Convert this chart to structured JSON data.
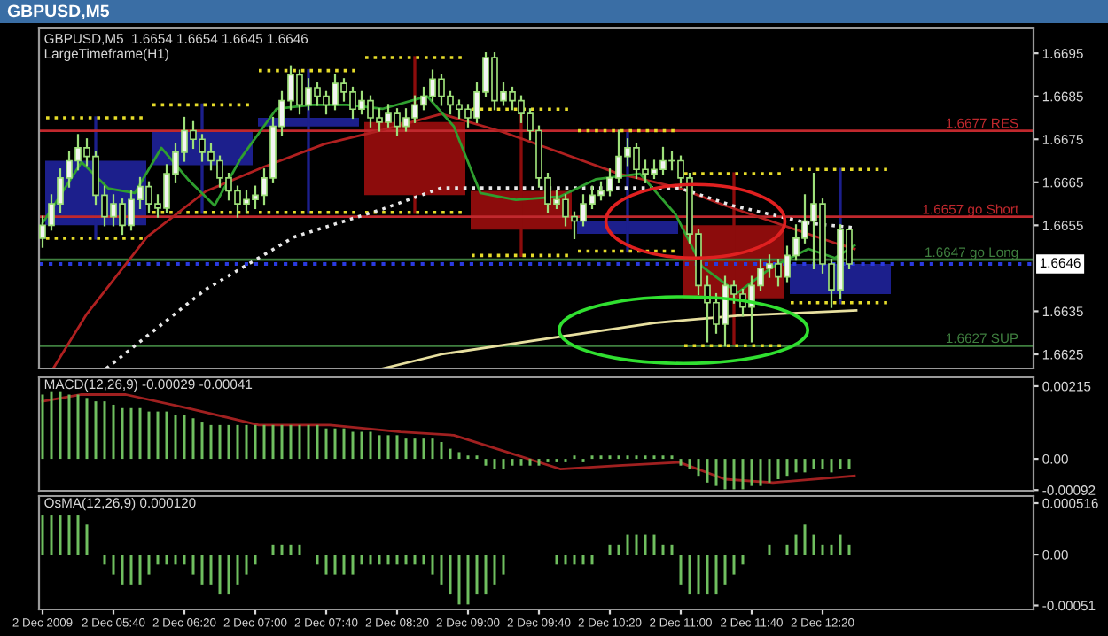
{
  "chart_data": [
    {
      "type": "candlestick",
      "title": "GBPUSD,M5",
      "subtitle": "GBPUSD,M5  1.6654 1.6654 1.6645 1.6646",
      "annotations": [
        "LargeTimeframe(H1)"
      ],
      "xlim": [
        "2009-12-02T04:58",
        "2009-12-02T14:19"
      ],
      "ylim": [
        1.66217,
        1.67008
      ],
      "tick_labels": "y",
      "yticks": [
        1.6625,
        1.6635,
        1.6655,
        1.6665,
        1.6675,
        1.6685,
        1.6695
      ],
      "ref_lines": [
        {
          "axis": "y",
          "value": 1.6677,
          "label": "1.6677 RES",
          "color": "#c0282d"
        },
        {
          "axis": "y",
          "value": 1.6657,
          "label": "1.6657 go Short",
          "color": "#c0282d"
        },
        {
          "axis": "y",
          "value": 1.6647,
          "label": "1.6647 go Long",
          "color": "#3f7f3f"
        },
        {
          "axis": "y",
          "value": 1.6627,
          "label": "1.6627 SUP",
          "color": "#3f7f3f"
        },
        {
          "axis": "y",
          "value": 1.6646,
          "label": "1.6646",
          "color": "#2a3adf",
          "line_style": "dotted"
        }
      ],
      "x": [
        "2009-12-02T05:00",
        "2009-12-02T05:05",
        "2009-12-02T05:10",
        "2009-12-02T05:15",
        "2009-12-02T05:20",
        "2009-12-02T05:25",
        "2009-12-02T05:30",
        "2009-12-02T05:35",
        "2009-12-02T05:40",
        "2009-12-02T05:45",
        "2009-12-02T05:50",
        "2009-12-02T05:55",
        "2009-12-02T06:00",
        "2009-12-02T06:05",
        "2009-12-02T06:10",
        "2009-12-02T06:15",
        "2009-12-02T06:20",
        "2009-12-02T06:25",
        "2009-12-02T06:30",
        "2009-12-02T06:35",
        "2009-12-02T06:40",
        "2009-12-02T06:45",
        "2009-12-02T06:50",
        "2009-12-02T06:55",
        "2009-12-02T07:00",
        "2009-12-02T07:05",
        "2009-12-02T07:10",
        "2009-12-02T07:15",
        "2009-12-02T07:20",
        "2009-12-02T07:25",
        "2009-12-02T07:30",
        "2009-12-02T07:35",
        "2009-12-02T07:40",
        "2009-12-02T07:45",
        "2009-12-02T07:50",
        "2009-12-02T07:55",
        "2009-12-02T08:00",
        "2009-12-02T08:05",
        "2009-12-02T08:10",
        "2009-12-02T08:15",
        "2009-12-02T08:20",
        "2009-12-02T08:25",
        "2009-12-02T08:30",
        "2009-12-02T08:35",
        "2009-12-02T08:40",
        "2009-12-02T08:45",
        "2009-12-02T08:50",
        "2009-12-02T08:55",
        "2009-12-02T09:00",
        "2009-12-02T09:05",
        "2009-12-02T09:10",
        "2009-12-02T09:15",
        "2009-12-02T09:20",
        "2009-12-02T09:25",
        "2009-12-02T09:30",
        "2009-12-02T09:35",
        "2009-12-02T09:40",
        "2009-12-02T09:45",
        "2009-12-02T09:50",
        "2009-12-02T09:55",
        "2009-12-02T10:00",
        "2009-12-02T10:05",
        "2009-12-02T10:10",
        "2009-12-02T10:15",
        "2009-12-02T10:20",
        "2009-12-02T10:25",
        "2009-12-02T10:30",
        "2009-12-02T10:35",
        "2009-12-02T10:40",
        "2009-12-02T10:45",
        "2009-12-02T10:50",
        "2009-12-02T10:55",
        "2009-12-02T11:00",
        "2009-12-02T11:05",
        "2009-12-02T11:10",
        "2009-12-02T11:15",
        "2009-12-02T11:20",
        "2009-12-02T11:25",
        "2009-12-02T11:30",
        "2009-12-02T11:35",
        "2009-12-02T11:40",
        "2009-12-02T11:45",
        "2009-12-02T11:50",
        "2009-12-02T11:55",
        "2009-12-02T12:00",
        "2009-12-02T12:05",
        "2009-12-02T12:10",
        "2009-12-02T12:15",
        "2009-12-02T12:20",
        "2009-12-02T12:25",
        "2009-12-02T12:30",
        "2009-12-02T12:35"
      ],
      "series": [
        {
          "type": "line",
          "color": "#e6dc2a",
          "line_style": "dotted",
          "x": [
            "2009-12-02T05:02",
            "2009-12-02T05:58"
          ],
          "values": [
            1.668,
            1.668
          ]
        },
        {
          "type": "line",
          "color": "#e6dc2a",
          "line_style": "dotted",
          "x": [
            "2009-12-02T05:02",
            "2009-12-02T05:58"
          ],
          "values": [
            1.6652,
            1.6652
          ]
        },
        {
          "type": "line",
          "color": "#e6dc2a",
          "line_style": "dotted",
          "x": [
            "2009-12-02T06:02",
            "2009-12-02T06:58"
          ],
          "values": [
            1.6683,
            1.6683
          ]
        },
        {
          "type": "line",
          "color": "#e6dc2a",
          "line_style": "dotted",
          "x": [
            "2009-12-02T06:02",
            "2009-12-02T06:58"
          ],
          "values": [
            1.6658,
            1.6658
          ]
        },
        {
          "type": "line",
          "color": "#e6dc2a",
          "line_style": "dotted",
          "x": [
            "2009-12-02T07:02",
            "2009-12-02T07:58"
          ],
          "values": [
            1.6691,
            1.6691
          ]
        },
        {
          "type": "line",
          "color": "#e6dc2a",
          "line_style": "dotted",
          "x": [
            "2009-12-02T07:02",
            "2009-12-02T07:58"
          ],
          "values": [
            1.6658,
            1.6658
          ]
        },
        {
          "type": "line",
          "color": "#e6dc2a",
          "line_style": "dotted",
          "x": [
            "2009-12-02T08:02",
            "2009-12-02T08:58"
          ],
          "values": [
            1.6694,
            1.6694
          ]
        },
        {
          "type": "line",
          "color": "#e6dc2a",
          "line_style": "dotted",
          "x": [
            "2009-12-02T08:02",
            "2009-12-02T08:58"
          ],
          "values": [
            1.6658,
            1.6658
          ]
        },
        {
          "type": "line",
          "color": "#e6dc2a",
          "line_style": "dotted",
          "x": [
            "2009-12-02T09:02",
            "2009-12-02T09:58"
          ],
          "values": [
            1.6682,
            1.6682
          ]
        },
        {
          "type": "line",
          "color": "#e6dc2a",
          "line_style": "dotted",
          "x": [
            "2009-12-02T09:02",
            "2009-12-02T09:58"
          ],
          "values": [
            1.6648,
            1.6648
          ]
        },
        {
          "type": "line",
          "color": "#e6dc2a",
          "line_style": "dotted",
          "x": [
            "2009-12-02T10:02",
            "2009-12-02T10:58"
          ],
          "values": [
            1.6677,
            1.6677
          ]
        },
        {
          "type": "line",
          "color": "#e6dc2a",
          "line_style": "dotted",
          "x": [
            "2009-12-02T10:02",
            "2009-12-02T10:58"
          ],
          "values": [
            1.6649,
            1.6649
          ]
        },
        {
          "type": "line",
          "color": "#e6dc2a",
          "line_style": "dotted",
          "x": [
            "2009-12-02T11:02",
            "2009-12-02T11:58"
          ],
          "values": [
            1.6667,
            1.6667
          ]
        },
        {
          "type": "line",
          "color": "#e6dc2a",
          "line_style": "dotted",
          "x": [
            "2009-12-02T11:02",
            "2009-12-02T11:58"
          ],
          "values": [
            1.6627,
            1.6627
          ]
        },
        {
          "type": "line",
          "color": "#e6dc2a",
          "line_style": "dotted",
          "x": [
            "2009-12-02T12:02",
            "2009-12-02T12:58"
          ],
          "values": [
            1.6668,
            1.6668
          ]
        },
        {
          "type": "line",
          "color": "#e6dc2a",
          "line_style": "dotted",
          "x": [
            "2009-12-02T12:02",
            "2009-12-02T12:58"
          ],
          "values": [
            1.6637,
            1.6637
          ]
        },
        {
          "type": "candlestick",
          "x": [
            "2009-12-02T05:30",
            "2009-12-02T06:30",
            "2009-12-02T07:30",
            "2009-12-02T08:30",
            "2009-12-02T09:30",
            "2009-12-02T10:30",
            "2009-12-02T11:30",
            "2009-12-02T12:30"
          ],
          "colors": [
            "#1c1f8c",
            "#1c1f8c",
            "#1c1f8c",
            "#8c0c0c",
            "#8c0c0c",
            "#1c1f8c",
            "#8c0c0c",
            "#1c1f8c"
          ],
          "ohlc": [
            [
              1.6655,
              1.668,
              1.6652,
              1.667
            ],
            [
              1.6669,
              1.6683,
              1.6658,
              1.6677
            ],
            [
              1.6678,
              1.6691,
              1.6658,
              1.668
            ],
            [
              1.6679,
              1.6694,
              1.6658,
              1.6662
            ],
            [
              1.6663,
              1.6682,
              1.6648,
              1.6654
            ],
            [
              1.6653,
              1.6677,
              1.6649,
              1.6656
            ],
            [
              1.6655,
              1.6667,
              1.6627,
              1.6638
            ],
            [
              1.6639,
              1.6668,
              1.6637,
              1.6646
            ]
          ]
        },
        {
          "type": "line",
          "color": "#b02020",
          "x": [
            "2009-12-02T05:06",
            "2009-12-02T05:25",
            "2009-12-02T05:59",
            "2009-12-02T06:32",
            "2009-12-02T07:05",
            "2009-12-02T07:39",
            "2009-12-02T08:12",
            "2009-12-02T08:45",
            "2009-12-02T09:19",
            "2009-12-02T09:52",
            "2009-12-02T10:25",
            "2009-12-02T10:59",
            "2009-12-02T11:25",
            "2009-12-02T12:29",
            "2009-12-02T12:38"
          ],
          "values": [
            1.66217,
            1.66344,
            1.66523,
            1.66629,
            1.66686,
            1.66739,
            1.66772,
            1.66809,
            1.66768,
            1.66719,
            1.6667,
            1.66637,
            1.66596,
            1.66506,
            1.66495
          ]
        },
        {
          "type": "line",
          "color": "#e8e8e8",
          "line_style": "dotted",
          "x": [
            "2009-12-02T05:36",
            "2009-12-02T06:32",
            "2009-12-02T07:22",
            "2009-12-02T08:12",
            "2009-12-02T08:45",
            "2009-12-02T10:12",
            "2009-12-02T10:59",
            "2009-12-02T11:29",
            "2009-12-02T12:12",
            "2009-12-02T12:39"
          ],
          "values": [
            1.66217,
            1.66401,
            1.66523,
            1.66588,
            1.66637,
            1.66637,
            1.66637,
            1.66596,
            1.66555,
            1.66544
          ]
        },
        {
          "type": "line",
          "color": "#e8e0a0",
          "x": [
            "2009-12-02T08:12",
            "2009-12-02T08:45",
            "2009-12-02T09:52",
            "2009-12-02T10:45",
            "2009-12-02T11:32",
            "2009-12-02T12:39"
          ],
          "values": [
            1.66217,
            1.6625,
            1.66291,
            1.66323,
            1.6634,
            1.66352
          ]
        },
        {
          "type": "line",
          "color": "#2f9f2f",
          "x": [
            "2009-12-02T05:00",
            "2009-12-02T05:22",
            "2009-12-02T05:37",
            "2009-12-02T05:52",
            "2009-12-02T06:07",
            "2009-12-02T06:22",
            "2009-12-02T06:37",
            "2009-12-02T06:52",
            "2009-12-02T07:12",
            "2009-12-02T07:32",
            "2009-12-02T07:52",
            "2009-12-02T08:12",
            "2009-12-02T08:37",
            "2009-12-02T08:52",
            "2009-12-02T09:07",
            "2009-12-02T09:27",
            "2009-12-02T09:52",
            "2009-12-02T10:12",
            "2009-12-02T10:37",
            "2009-12-02T10:57",
            "2009-12-02T11:12",
            "2009-12-02T11:32",
            "2009-12-02T11:52",
            "2009-12-02T12:12",
            "2009-12-02T12:27",
            "2009-12-02T12:38"
          ],
          "values": [
            1.66555,
            1.66697,
            1.66636,
            1.66625,
            1.6673,
            1.66657,
            1.66596,
            1.66707,
            1.66821,
            1.6683,
            1.6683,
            1.66821,
            1.6685,
            1.6678,
            1.66625,
            1.66609,
            1.66617,
            1.66657,
            1.6667,
            1.66576,
            1.66454,
            1.66393,
            1.66454,
            1.66495,
            1.66474,
            1.66503
          ]
        },
        {
          "color": "#9ee07a",
          "ohlc": [
            [
              1.6652,
              1.6657,
              1.665,
              1.6655
            ],
            [
              1.6655,
              1.6662,
              1.6654,
              1.666
            ],
            [
              1.666,
              1.6668,
              1.6658,
              1.6666
            ],
            [
              1.6666,
              1.6672,
              1.6664,
              1.667
            ],
            [
              1.667,
              1.6676,
              1.6668,
              1.6673
            ],
            [
              1.6673,
              1.6675,
              1.6669,
              1.6671
            ],
            [
              1.6671,
              1.6672,
              1.666,
              1.6662
            ],
            [
              1.6662,
              1.6664,
              1.6655,
              1.6657
            ],
            [
              1.6657,
              1.6662,
              1.6655,
              1.666
            ],
            [
              1.666,
              1.6661,
              1.6653,
              1.6655
            ],
            [
              1.6655,
              1.6663,
              1.6654,
              1.6661
            ],
            [
              1.6661,
              1.6666,
              1.6659,
              1.6664
            ],
            [
              1.6664,
              1.6665,
              1.6658,
              1.666
            ],
            [
              1.666,
              1.6662,
              1.6657,
              1.6659
            ],
            [
              1.6659,
              1.6669,
              1.6658,
              1.6667
            ],
            [
              1.6667,
              1.6674,
              1.6665,
              1.6672
            ],
            [
              1.6672,
              1.668,
              1.667,
              1.6677
            ],
            [
              1.6677,
              1.6679,
              1.6673,
              1.6675
            ],
            [
              1.6675,
              1.6676,
              1.667,
              1.6672
            ],
            [
              1.6672,
              1.6674,
              1.6668,
              1.667
            ],
            [
              1.667,
              1.6671,
              1.6664,
              1.6666
            ],
            [
              1.6666,
              1.6667,
              1.6661,
              1.6663
            ],
            [
              1.6663,
              1.6664,
              1.6657,
              1.666
            ],
            [
              1.666,
              1.6663,
              1.6658,
              1.6661
            ],
            [
              1.6661,
              1.6664,
              1.6659,
              1.6662
            ],
            [
              1.6662,
              1.6668,
              1.666,
              1.6666
            ],
            [
              1.6666,
              1.668,
              1.6665,
              1.6678
            ],
            [
              1.6678,
              1.6686,
              1.6676,
              1.6684
            ],
            [
              1.6684,
              1.6692,
              1.6682,
              1.669
            ],
            [
              1.669,
              1.6691,
              1.6681,
              1.6683
            ],
            [
              1.6683,
              1.6689,
              1.6682,
              1.6687
            ],
            [
              1.6687,
              1.6688,
              1.6683,
              1.6685
            ],
            [
              1.6685,
              1.6686,
              1.6681,
              1.6683
            ],
            [
              1.6683,
              1.669,
              1.6682,
              1.6688
            ],
            [
              1.6688,
              1.6689,
              1.6684,
              1.6686
            ],
            [
              1.6686,
              1.6687,
              1.668,
              1.6682
            ],
            [
              1.6682,
              1.6686,
              1.6681,
              1.6684
            ],
            [
              1.6684,
              1.6685,
              1.6678,
              1.668
            ],
            [
              1.668,
              1.6682,
              1.6677,
              1.6679
            ],
            [
              1.6679,
              1.6683,
              1.6678,
              1.6681
            ],
            [
              1.6681,
              1.6682,
              1.6676,
              1.6678
            ],
            [
              1.6678,
              1.6682,
              1.6677,
              1.668
            ],
            [
              1.668,
              1.6685,
              1.6679,
              1.6683
            ],
            [
              1.6683,
              1.6687,
              1.6682,
              1.6685
            ],
            [
              1.6685,
              1.6691,
              1.6684,
              1.6689
            ],
            [
              1.6689,
              1.669,
              1.6683,
              1.6685
            ],
            [
              1.6685,
              1.6686,
              1.6681,
              1.6683
            ],
            [
              1.6683,
              1.6684,
              1.668,
              1.6682
            ],
            [
              1.6682,
              1.6683,
              1.6678,
              1.668
            ],
            [
              1.668,
              1.6688,
              1.6679,
              1.6686
            ],
            [
              1.6686,
              1.6695,
              1.6685,
              1.6694
            ],
            [
              1.6694,
              1.6695,
              1.6682,
              1.6684
            ],
            [
              1.6684,
              1.6688,
              1.6683,
              1.6686
            ],
            [
              1.6686,
              1.6687,
              1.6682,
              1.6684
            ],
            [
              1.6684,
              1.6685,
              1.6679,
              1.6681
            ],
            [
              1.6681,
              1.6682,
              1.6675,
              1.6677
            ],
            [
              1.6677,
              1.6678,
              1.6664,
              1.6666
            ],
            [
              1.6666,
              1.6667,
              1.6658,
              1.666
            ],
            [
              1.666,
              1.6663,
              1.6659,
              1.6661
            ],
            [
              1.6661,
              1.6662,
              1.6655,
              1.6657
            ],
            [
              1.6657,
              1.6658,
              1.6652,
              1.6656
            ],
            [
              1.6656,
              1.6662,
              1.6655,
              1.666
            ],
            [
              1.666,
              1.6664,
              1.6659,
              1.6662
            ],
            [
              1.6662,
              1.6665,
              1.6661,
              1.6663
            ],
            [
              1.6663,
              1.6668,
              1.6662,
              1.6666
            ],
            [
              1.6666,
              1.6677,
              1.6665,
              1.6671
            ],
            [
              1.6671,
              1.6675,
              1.6669,
              1.6673
            ],
            [
              1.6673,
              1.6674,
              1.6666,
              1.6668
            ],
            [
              1.6668,
              1.667,
              1.6665,
              1.6667
            ],
            [
              1.6667,
              1.667,
              1.6666,
              1.6668
            ],
            [
              1.6668,
              1.6673,
              1.6667,
              1.667
            ],
            [
              1.667,
              1.6672,
              1.6668,
              1.667
            ],
            [
              1.667,
              1.6671,
              1.6664,
              1.6666
            ],
            [
              1.6666,
              1.6667,
              1.6651,
              1.6653
            ],
            [
              1.6653,
              1.6654,
              1.6639,
              1.6641
            ],
            [
              1.6641,
              1.6643,
              1.6628,
              1.6637
            ],
            [
              1.6637,
              1.6639,
              1.663,
              1.6632
            ],
            [
              1.6632,
              1.6643,
              1.6627,
              1.6641
            ],
            [
              1.6641,
              1.6642,
              1.6637,
              1.6639
            ],
            [
              1.6639,
              1.664,
              1.6634,
              1.6636
            ],
            [
              1.6636,
              1.6643,
              1.6628,
              1.6641
            ],
            [
              1.6641,
              1.6647,
              1.664,
              1.6645
            ],
            [
              1.6645,
              1.6648,
              1.6643,
              1.6646
            ],
            [
              1.6646,
              1.6647,
              1.6641,
              1.6643
            ],
            [
              1.6643,
              1.665,
              1.6642,
              1.6648
            ],
            [
              1.6648,
              1.6655,
              1.6647,
              1.6652
            ],
            [
              1.6652,
              1.6662,
              1.6651,
              1.6656
            ],
            [
              1.6656,
              1.6667,
              1.6645,
              1.666
            ],
            [
              1.666,
              1.6661,
              1.6644,
              1.6646
            ],
            [
              1.6646,
              1.6647,
              1.6636,
              1.664
            ],
            [
              1.664,
              1.6655,
              1.6638,
              1.6654
            ],
            [
              1.6654,
              1.6654,
              1.6645,
              1.6646
            ]
          ]
        }
      ]
    },
    {
      "type": "bar",
      "subtitle": "MACD(12,26,9) -0.00029 -0.00041",
      "xlim": [
        "2009-12-02T04:58",
        "2009-12-02T14:19"
      ],
      "ylim": [
        -0.00094,
        0.00241
      ],
      "tick_labels": "y",
      "yticks": [
        -0.00092,
        {
          "value": 0,
          "label": "0.00"
        },
        0.00215
      ],
      "x": [
        "2009-12-02T05:00",
        "2009-12-02T05:05",
        "2009-12-02T05:10",
        "2009-12-02T05:15",
        "2009-12-02T05:20",
        "2009-12-02T05:25",
        "2009-12-02T05:30",
        "2009-12-02T05:35",
        "2009-12-02T05:40",
        "2009-12-02T05:45",
        "2009-12-02T05:50",
        "2009-12-02T05:55",
        "2009-12-02T06:00",
        "2009-12-02T06:05",
        "2009-12-02T06:10",
        "2009-12-02T06:15",
        "2009-12-02T06:20",
        "2009-12-02T06:25",
        "2009-12-02T06:30",
        "2009-12-02T06:35",
        "2009-12-02T06:40",
        "2009-12-02T06:45",
        "2009-12-02T06:50",
        "2009-12-02T06:55",
        "2009-12-02T07:00",
        "2009-12-02T07:05",
        "2009-12-02T07:10",
        "2009-12-02T07:15",
        "2009-12-02T07:20",
        "2009-12-02T07:25",
        "2009-12-02T07:30",
        "2009-12-02T07:35",
        "2009-12-02T07:40",
        "2009-12-02T07:45",
        "2009-12-02T07:50",
        "2009-12-02T07:55",
        "2009-12-02T08:00",
        "2009-12-02T08:05",
        "2009-12-02T08:10",
        "2009-12-02T08:15",
        "2009-12-02T08:20",
        "2009-12-02T08:25",
        "2009-12-02T08:30",
        "2009-12-02T08:35",
        "2009-12-02T08:40",
        "2009-12-02T08:45",
        "2009-12-02T08:50",
        "2009-12-02T08:55",
        "2009-12-02T09:00",
        "2009-12-02T09:05",
        "2009-12-02T09:10",
        "2009-12-02T09:15",
        "2009-12-02T09:20",
        "2009-12-02T09:25",
        "2009-12-02T09:30",
        "2009-12-02T09:35",
        "2009-12-02T09:40",
        "2009-12-02T09:45",
        "2009-12-02T09:50",
        "2009-12-02T09:55",
        "2009-12-02T10:00",
        "2009-12-02T10:05",
        "2009-12-02T10:10",
        "2009-12-02T10:15",
        "2009-12-02T10:20",
        "2009-12-02T10:25",
        "2009-12-02T10:30",
        "2009-12-02T10:35",
        "2009-12-02T10:40",
        "2009-12-02T10:45",
        "2009-12-02T10:50",
        "2009-12-02T10:55",
        "2009-12-02T11:00",
        "2009-12-02T11:05",
        "2009-12-02T11:10",
        "2009-12-02T11:15",
        "2009-12-02T11:20",
        "2009-12-02T11:25",
        "2009-12-02T11:30",
        "2009-12-02T11:35",
        "2009-12-02T11:40",
        "2009-12-02T11:45",
        "2009-12-02T11:50",
        "2009-12-02T11:55",
        "2009-12-02T12:00",
        "2009-12-02T12:05",
        "2009-12-02T12:10",
        "2009-12-02T12:15",
        "2009-12-02T12:20",
        "2009-12-02T12:25",
        "2009-12-02T12:30",
        "2009-12-02T12:35"
      ],
      "series": [
        {
          "color": "#6fbf5f",
          "values": [
            0.0019,
            0.002,
            0.002,
            0.0019,
            0.0019,
            0.0018,
            0.0017,
            0.0017,
            0.0016,
            0.0015,
            0.0015,
            0.0015,
            0.0014,
            0.0014,
            0.0014,
            0.0013,
            0.0013,
            0.0012,
            0.0011,
            0.001,
            0.001,
            0.001,
            0.001,
            0.001,
            0.001,
            0.001,
            0.001,
            0.001,
            0.001,
            0.001,
            0.001,
            0.001,
            0.0009,
            0.0009,
            0.0009,
            0.0008,
            0.0008,
            0.0008,
            0.0007,
            0.0007,
            0.0007,
            0.0006,
            0.0006,
            0.0006,
            0.0006,
            0.0005,
            0.0003,
            0.0002,
            0.0001,
            0.0001,
            -0.0002,
            -0.0003,
            -0.0003,
            -0.0002,
            -0.0002,
            -0.0002,
            -0.0002,
            -0.0001,
            -0.0001,
            -0.0001,
            0.0001,
            -0.0001,
            0.0001,
            0.0001,
            0.0001,
            0.0001,
            0.0001,
            0.0001,
            0.0001,
            0.0001,
            0.0001,
            0.0001,
            -0.0002,
            -0.0003,
            -0.0005,
            -0.0007,
            -0.0008,
            -0.0009,
            -0.0009,
            -0.0009,
            -0.0008,
            -0.0008,
            -0.0007,
            -0.0006,
            -0.0005,
            -0.0004,
            -0.0004,
            -0.0003,
            -0.0003,
            -0.0004,
            -0.0003,
            -0.0003
          ]
        },
        {
          "type": "line",
          "color": "#a02020",
          "x": [
            "2009-12-02T05:00",
            "2009-12-02T05:22",
            "2009-12-02T05:47",
            "2009-12-02T06:22",
            "2009-12-02T07:02",
            "2009-12-02T07:42",
            "2009-12-02T08:22",
            "2009-12-02T08:52",
            "2009-12-02T09:22",
            "2009-12-02T09:52",
            "2009-12-02T10:25",
            "2009-12-02T10:59",
            "2009-12-02T11:25",
            "2009-12-02T11:52",
            "2009-12-02T12:38"
          ],
          "values": [
            0.0017,
            0.0019,
            0.0019,
            0.0015,
            0.001,
            0.001,
            0.0008,
            0.0007,
            0.0002,
            -0.0003,
            -0.0002,
            -0.0001,
            -0.0006,
            -0.0007,
            -0.0005
          ]
        }
      ]
    },
    {
      "type": "bar",
      "subtitle": "OsMA(12,26,9) 0.000120",
      "xlim": [
        "2009-12-02T04:58",
        "2009-12-02T14:19"
      ],
      "ylim": [
        -0.00055,
        0.000587
      ],
      "xticks": [
        {
          "value": "2009-12-02T05:00",
          "label": "2 Dec 2009"
        },
        {
          "value": "2009-12-02T05:40",
          "label": "2 Dec 05:40"
        },
        {
          "value": "2009-12-02T06:20",
          "label": "2 Dec 06:20"
        },
        {
          "value": "2009-12-02T07:00",
          "label": "2 Dec 07:00"
        },
        {
          "value": "2009-12-02T07:40",
          "label": "2 Dec 07:40"
        },
        {
          "value": "2009-12-02T08:20",
          "label": "2 Dec 08:20"
        },
        {
          "value": "2009-12-02T09:00",
          "label": "2 Dec 09:00"
        },
        {
          "value": "2009-12-02T09:40",
          "label": "2 Dec 09:40"
        },
        {
          "value": "2009-12-02T10:20",
          "label": "2 Dec 10:20"
        },
        {
          "value": "2009-12-02T11:00",
          "label": "2 Dec 11:00"
        },
        {
          "value": "2009-12-02T11:40",
          "label": "2 Dec 11:40"
        },
        {
          "value": "2009-12-02T12:20",
          "label": "2 Dec 12:20"
        }
      ],
      "yticks": [
        -0.00051,
        {
          "value": 0,
          "label": "0.00"
        },
        0.000516
      ],
      "x": [
        "2009-12-02T05:00",
        "2009-12-02T05:05",
        "2009-12-02T05:10",
        "2009-12-02T05:15",
        "2009-12-02T05:20",
        "2009-12-02T05:25",
        "2009-12-02T05:30",
        "2009-12-02T05:35",
        "2009-12-02T05:40",
        "2009-12-02T05:45",
        "2009-12-02T05:50",
        "2009-12-02T05:55",
        "2009-12-02T06:00",
        "2009-12-02T06:05",
        "2009-12-02T06:10",
        "2009-12-02T06:15",
        "2009-12-02T06:20",
        "2009-12-02T06:25",
        "2009-12-02T06:30",
        "2009-12-02T06:35",
        "2009-12-02T06:40",
        "2009-12-02T06:45",
        "2009-12-02T06:50",
        "2009-12-02T06:55",
        "2009-12-02T07:00",
        "2009-12-02T07:05",
        "2009-12-02T07:10",
        "2009-12-02T07:15",
        "2009-12-02T07:20",
        "2009-12-02T07:25",
        "2009-12-02T07:30",
        "2009-12-02T07:35",
        "2009-12-02T07:40",
        "2009-12-02T07:45",
        "2009-12-02T07:50",
        "2009-12-02T07:55",
        "2009-12-02T08:00",
        "2009-12-02T08:05",
        "2009-12-02T08:10",
        "2009-12-02T08:15",
        "2009-12-02T08:20",
        "2009-12-02T08:25",
        "2009-12-02T08:30",
        "2009-12-02T08:35",
        "2009-12-02T08:40",
        "2009-12-02T08:45",
        "2009-12-02T08:50",
        "2009-12-02T08:55",
        "2009-12-02T09:00",
        "2009-12-02T09:05",
        "2009-12-02T09:10",
        "2009-12-02T09:15",
        "2009-12-02T09:20",
        "2009-12-02T09:25",
        "2009-12-02T09:30",
        "2009-12-02T09:35",
        "2009-12-02T09:40",
        "2009-12-02T09:45",
        "2009-12-02T09:50",
        "2009-12-02T09:55",
        "2009-12-02T10:00",
        "2009-12-02T10:05",
        "2009-12-02T10:10",
        "2009-12-02T10:15",
        "2009-12-02T10:20",
        "2009-12-02T10:25",
        "2009-12-02T10:30",
        "2009-12-02T10:35",
        "2009-12-02T10:40",
        "2009-12-02T10:45",
        "2009-12-02T10:50",
        "2009-12-02T10:55",
        "2009-12-02T11:00",
        "2009-12-02T11:05",
        "2009-12-02T11:10",
        "2009-12-02T11:15",
        "2009-12-02T11:20",
        "2009-12-02T11:25",
        "2009-12-02T11:30",
        "2009-12-02T11:35",
        "2009-12-02T11:40",
        "2009-12-02T11:45",
        "2009-12-02T11:50",
        "2009-12-02T11:55",
        "2009-12-02T12:00",
        "2009-12-02T12:05",
        "2009-12-02T12:10",
        "2009-12-02T12:15",
        "2009-12-02T12:20",
        "2009-12-02T12:25",
        "2009-12-02T12:30",
        "2009-12-02T12:35"
      ],
      "series": [
        {
          "color": "#6fbf5f",
          "values": [
            0.0004,
            0.0004,
            0.0004,
            0.0004,
            0.0004,
            0.0003,
            0.0,
            -0.0001,
            -0.0002,
            -0.0003,
            -0.0003,
            -0.0003,
            -0.0002,
            -0.0001,
            -0.0001,
            -0.0001,
            -0.0001,
            -0.0002,
            -0.0003,
            -0.0003,
            -0.0004,
            -0.0004,
            -0.0003,
            -0.0002,
            -0.0001,
            0.0,
            0.0001,
            0.0001,
            0.0001,
            0.0001,
            0.0,
            -0.0001,
            -0.0002,
            -0.0002,
            -0.0002,
            -0.0002,
            -0.0001,
            -0.0001,
            -0.0001,
            -0.0001,
            -0.0001,
            -0.0001,
            -0.0001,
            -0.0001,
            -0.0002,
            -0.0003,
            -0.0004,
            -0.0005,
            -0.0005,
            -0.0004,
            -0.0004,
            -0.0003,
            -0.0002,
            0.0,
            0.0,
            0.0,
            0.0,
            0.0,
            -0.0001,
            -0.0001,
            -0.0001,
            -0.0001,
            -0.0001,
            0.0,
            0.0001,
            0.0001,
            0.0002,
            0.0002,
            0.0002,
            0.0002,
            0.0001,
            0.0001,
            -0.0003,
            -0.0004,
            -0.0004,
            -0.0004,
            -0.0004,
            -0.0003,
            -0.0002,
            -0.0001,
            0.0,
            0.0,
            0.0001,
            0.0,
            0.0001,
            0.0002,
            0.0003,
            0.0002,
            0.0001,
            0.0001,
            0.0002,
            0.0001
          ]
        }
      ]
    }
  ]
}
